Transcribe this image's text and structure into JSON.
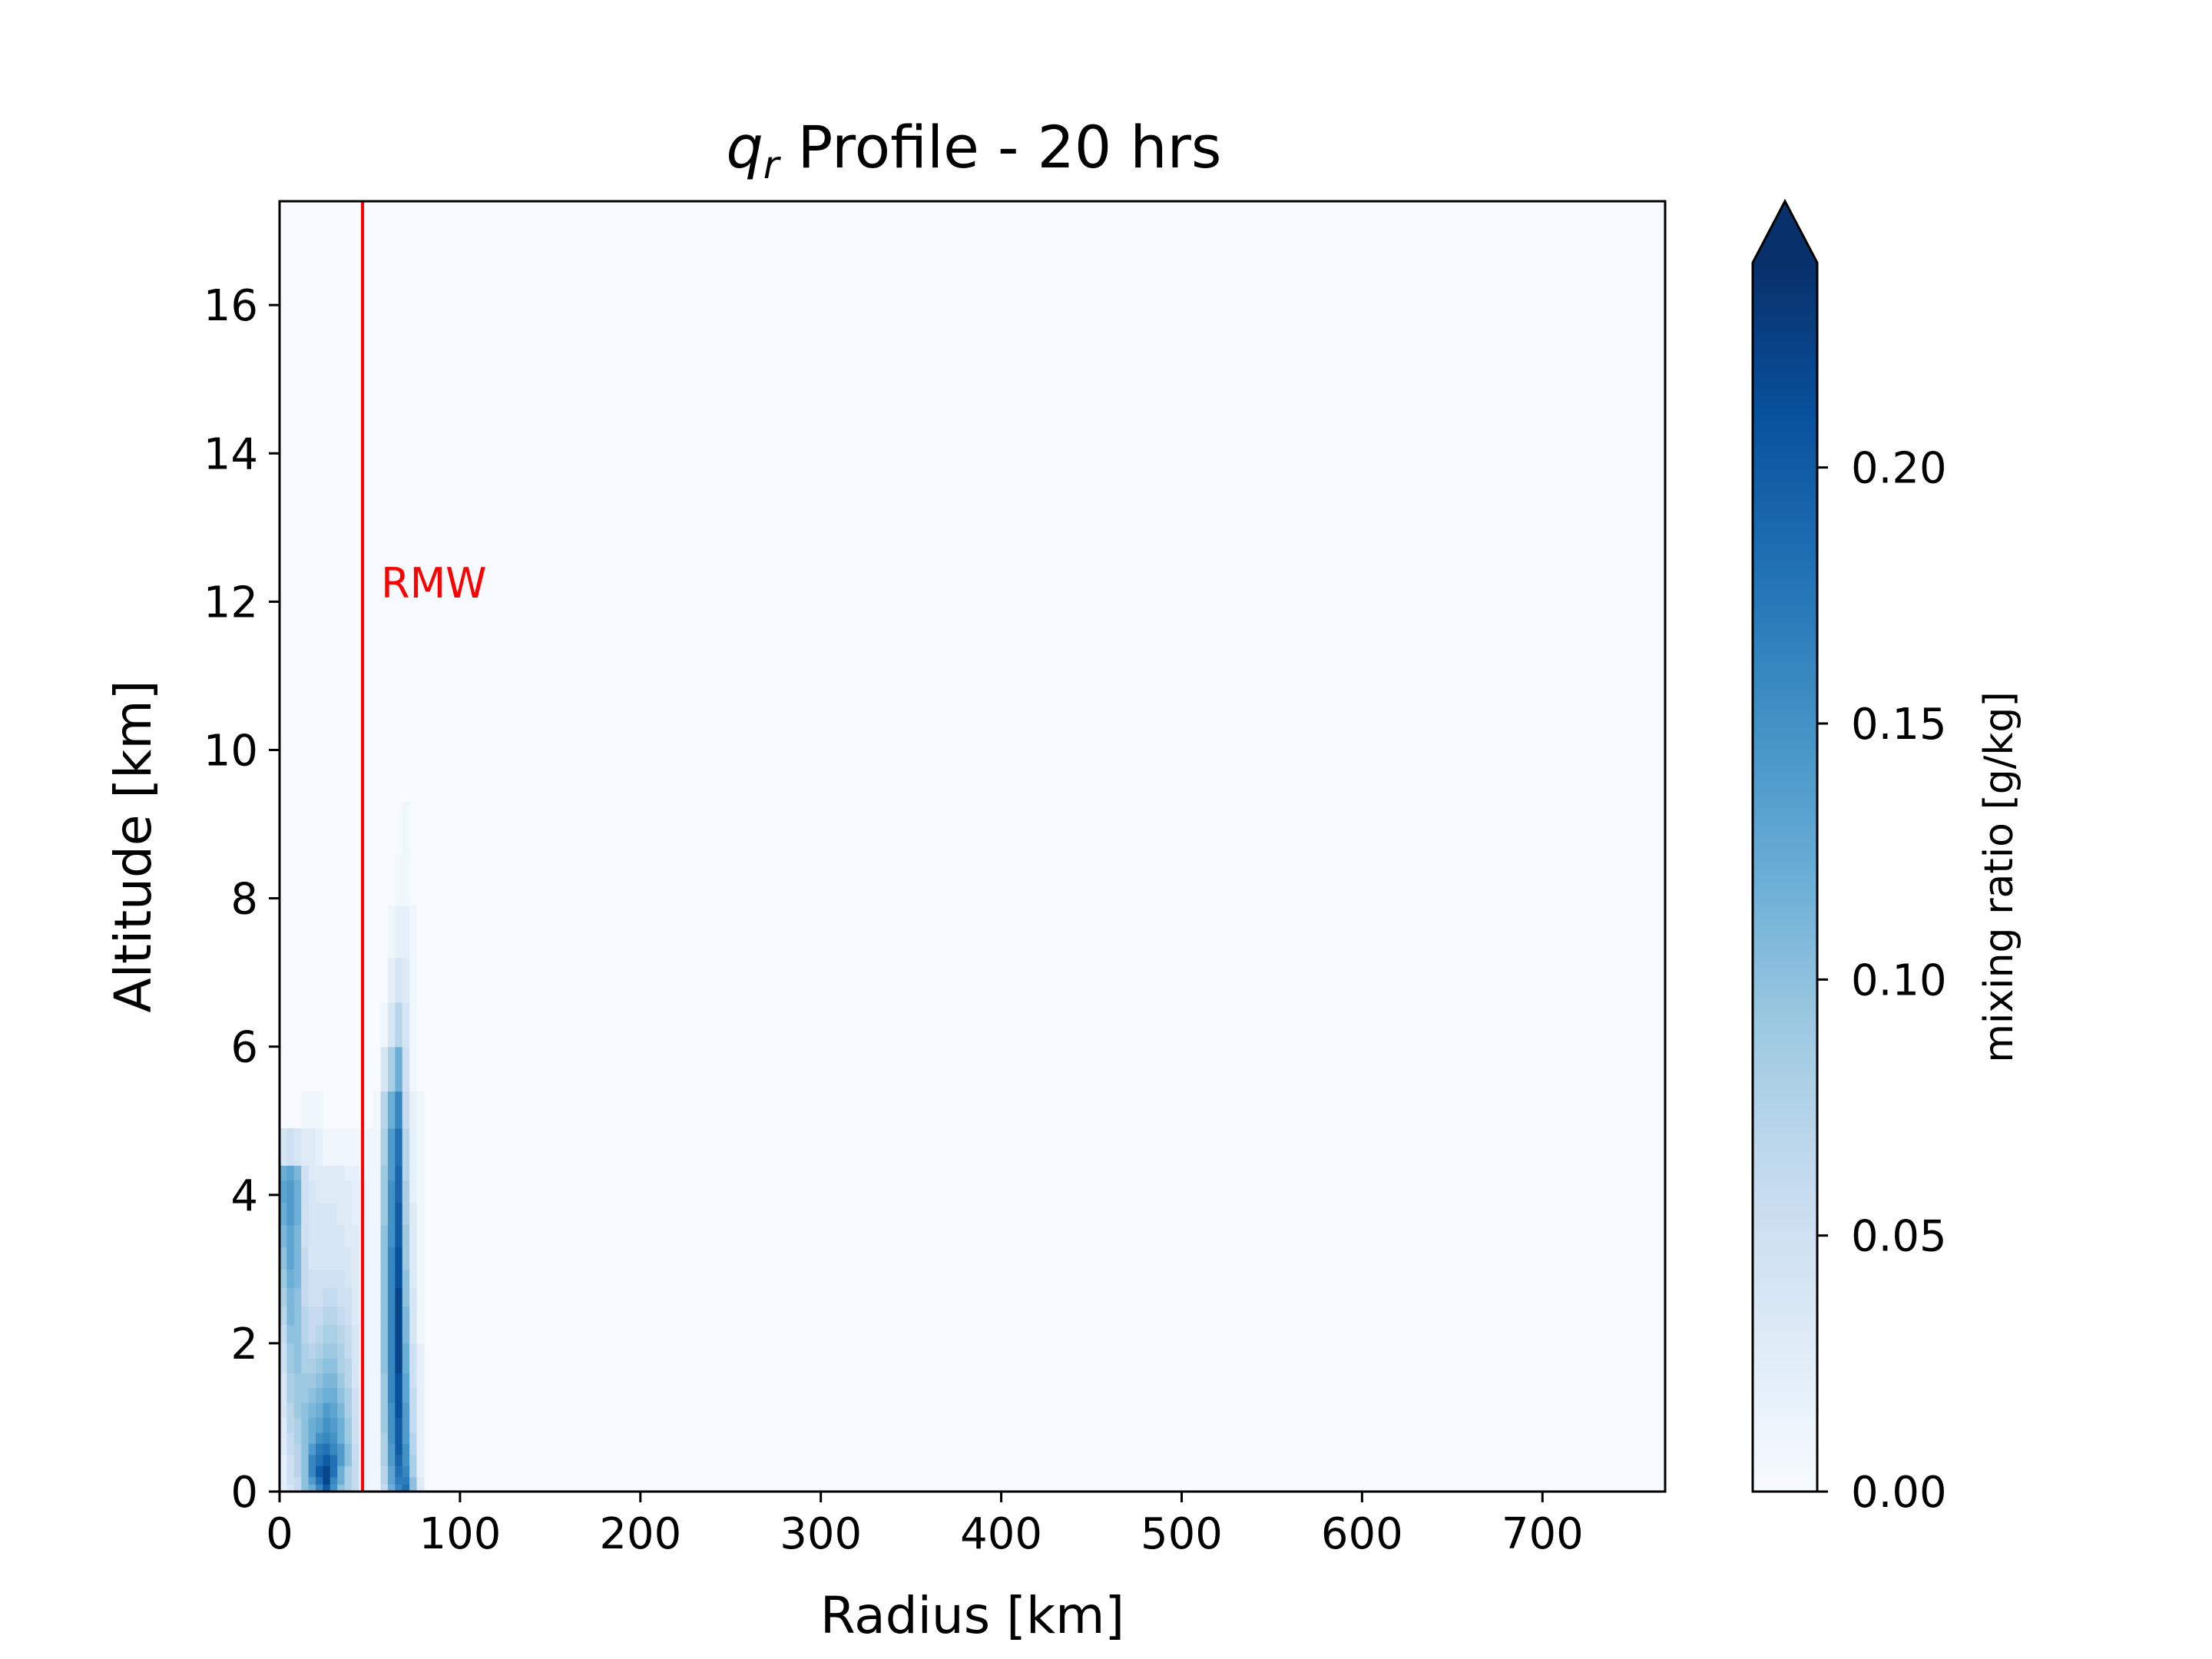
{
  "chart_data": {
    "type": "heatmap",
    "title": {
      "symbol": "q",
      "subscript": "r",
      "text": " Profile - 20 hrs"
    },
    "xlabel": "Radius [km]",
    "ylabel": "Altitude [km]",
    "xlim": [
      0,
      768
    ],
    "ylim": [
      0,
      17.4
    ],
    "x_ticks": [
      0,
      100,
      200,
      300,
      400,
      500,
      600,
      700
    ],
    "y_ticks": [
      0,
      2,
      4,
      6,
      8,
      10,
      12,
      14,
      16
    ],
    "colormap": "Blues",
    "colorbar": {
      "label": "mixing ratio [g/kg]",
      "range": [
        0,
        0.24
      ],
      "ticks": [
        "0.00",
        "0.05",
        "0.10",
        "0.15",
        "0.20"
      ],
      "extend": "max"
    },
    "rmw": {
      "label": "RMW",
      "radius_km": 46,
      "color": "#ff0000"
    },
    "grid": false,
    "field": {
      "r_edges": [
        0,
        4,
        8,
        12,
        16,
        20,
        24,
        28,
        32,
        36,
        40,
        44,
        48,
        52,
        56,
        60,
        64,
        68,
        72,
        76,
        80
      ],
      "z_edges": [
        0,
        0.1,
        0.2,
        0.35,
        0.5,
        0.65,
        0.8,
        1.0,
        1.2,
        1.4,
        1.6,
        1.8,
        2.0,
        2.25,
        2.5,
        2.75,
        3.0,
        3.3,
        3.6,
        3.9,
        4.2,
        4.4,
        4.9,
        5.4,
        6.0,
        6.6,
        7.2,
        7.9,
        8.6,
        9.3
      ],
      "values": [
        [
          0.02,
          0.04,
          0.06,
          0.1,
          0.12,
          0.16,
          0.2,
          0.15,
          0.1,
          0.08,
          0.06,
          0.02,
          0.01,
          0.01,
          0.06,
          0.12,
          0.16,
          0.18,
          0.1,
          0.03
        ],
        [
          0.02,
          0.05,
          0.06,
          0.1,
          0.14,
          0.18,
          0.22,
          0.16,
          0.12,
          0.08,
          0.06,
          0.02,
          0.01,
          0.01,
          0.07,
          0.13,
          0.17,
          0.17,
          0.1,
          0.03
        ],
        [
          0.02,
          0.05,
          0.07,
          0.1,
          0.16,
          0.2,
          0.22,
          0.18,
          0.12,
          0.08,
          0.06,
          0.02,
          0.01,
          0.01,
          0.07,
          0.13,
          0.18,
          0.16,
          0.08,
          0.02
        ],
        [
          0.02,
          0.05,
          0.07,
          0.1,
          0.16,
          0.18,
          0.2,
          0.18,
          0.14,
          0.1,
          0.06,
          0.02,
          0.01,
          0.01,
          0.08,
          0.14,
          0.19,
          0.15,
          0.08,
          0.02
        ],
        [
          0.03,
          0.06,
          0.07,
          0.1,
          0.14,
          0.17,
          0.18,
          0.16,
          0.14,
          0.1,
          0.06,
          0.02,
          0.01,
          0.01,
          0.08,
          0.14,
          0.2,
          0.15,
          0.07,
          0.02
        ],
        [
          0.03,
          0.06,
          0.08,
          0.1,
          0.12,
          0.15,
          0.16,
          0.15,
          0.12,
          0.09,
          0.05,
          0.02,
          0.01,
          0.01,
          0.08,
          0.15,
          0.2,
          0.14,
          0.07,
          0.02
        ],
        [
          0.03,
          0.07,
          0.08,
          0.1,
          0.12,
          0.13,
          0.15,
          0.14,
          0.12,
          0.09,
          0.05,
          0.02,
          0.01,
          0.01,
          0.09,
          0.15,
          0.2,
          0.14,
          0.06,
          0.02
        ],
        [
          0.04,
          0.07,
          0.09,
          0.1,
          0.11,
          0.12,
          0.14,
          0.13,
          0.11,
          0.08,
          0.05,
          0.02,
          0.01,
          0.01,
          0.09,
          0.15,
          0.21,
          0.14,
          0.06,
          0.02
        ],
        [
          0.04,
          0.08,
          0.09,
          0.09,
          0.1,
          0.11,
          0.12,
          0.12,
          0.1,
          0.08,
          0.05,
          0.02,
          0.01,
          0.01,
          0.09,
          0.16,
          0.21,
          0.13,
          0.06,
          0.02
        ],
        [
          0.04,
          0.08,
          0.09,
          0.09,
          0.09,
          0.1,
          0.11,
          0.11,
          0.09,
          0.07,
          0.04,
          0.02,
          0.01,
          0.01,
          0.09,
          0.16,
          0.21,
          0.13,
          0.05,
          0.02
        ],
        [
          0.05,
          0.09,
          0.1,
          0.08,
          0.08,
          0.09,
          0.1,
          0.1,
          0.08,
          0.07,
          0.04,
          0.02,
          0.01,
          0.01,
          0.1,
          0.16,
          0.22,
          0.12,
          0.05,
          0.02
        ],
        [
          0.05,
          0.09,
          0.1,
          0.08,
          0.07,
          0.08,
          0.09,
          0.09,
          0.08,
          0.06,
          0.04,
          0.02,
          0.01,
          0.01,
          0.1,
          0.16,
          0.22,
          0.12,
          0.05,
          0.02
        ],
        [
          0.06,
          0.1,
          0.1,
          0.07,
          0.06,
          0.07,
          0.08,
          0.08,
          0.07,
          0.06,
          0.04,
          0.02,
          0.01,
          0.01,
          0.1,
          0.16,
          0.22,
          0.11,
          0.04,
          0.01
        ],
        [
          0.07,
          0.11,
          0.1,
          0.07,
          0.06,
          0.06,
          0.07,
          0.07,
          0.06,
          0.05,
          0.03,
          0.02,
          0.01,
          0.01,
          0.1,
          0.16,
          0.22,
          0.11,
          0.04,
          0.01
        ],
        [
          0.08,
          0.11,
          0.1,
          0.06,
          0.05,
          0.05,
          0.06,
          0.06,
          0.05,
          0.05,
          0.03,
          0.02,
          0.01,
          0.01,
          0.1,
          0.16,
          0.22,
          0.1,
          0.04,
          0.01
        ],
        [
          0.09,
          0.12,
          0.11,
          0.06,
          0.05,
          0.05,
          0.05,
          0.05,
          0.05,
          0.04,
          0.03,
          0.02,
          0.01,
          0.01,
          0.1,
          0.16,
          0.21,
          0.1,
          0.03,
          0.01
        ],
        [
          0.1,
          0.13,
          0.11,
          0.06,
          0.04,
          0.04,
          0.04,
          0.04,
          0.04,
          0.04,
          0.03,
          0.02,
          0.01,
          0.01,
          0.1,
          0.16,
          0.21,
          0.09,
          0.03,
          0.01
        ],
        [
          0.11,
          0.13,
          0.11,
          0.05,
          0.04,
          0.04,
          0.04,
          0.04,
          0.04,
          0.03,
          0.03,
          0.02,
          0.01,
          0.01,
          0.1,
          0.15,
          0.2,
          0.09,
          0.03,
          0.01
        ],
        [
          0.12,
          0.14,
          0.12,
          0.05,
          0.04,
          0.04,
          0.04,
          0.04,
          0.03,
          0.03,
          0.02,
          0.02,
          0.01,
          0.01,
          0.09,
          0.15,
          0.2,
          0.08,
          0.03,
          0.01
        ],
        [
          0.13,
          0.14,
          0.12,
          0.05,
          0.04,
          0.03,
          0.03,
          0.03,
          0.03,
          0.03,
          0.02,
          0.02,
          0.01,
          0.01,
          0.09,
          0.15,
          0.19,
          0.08,
          0.02,
          0.01
        ],
        [
          0.12,
          0.13,
          0.11,
          0.05,
          0.03,
          0.03,
          0.03,
          0.03,
          0.03,
          0.02,
          0.02,
          0.01,
          0.01,
          0.01,
          0.09,
          0.14,
          0.19,
          0.07,
          0.02,
          0.01
        ],
        [
          0.04,
          0.05,
          0.04,
          0.03,
          0.03,
          0.02,
          0.01,
          0.01,
          0.01,
          0.01,
          0.01,
          0.01,
          0.01,
          0.01,
          0.08,
          0.14,
          0.18,
          0.07,
          0.02,
          0.01
        ],
        [
          0.0,
          0.0,
          0.0,
          0.01,
          0.01,
          0.01,
          0.0,
          0.0,
          0.0,
          0.0,
          0.0,
          0.0,
          0.0,
          0.01,
          0.07,
          0.12,
          0.16,
          0.06,
          0.02,
          0.01
        ],
        [
          0.0,
          0.0,
          0.0,
          0.0,
          0.0,
          0.0,
          0.0,
          0.0,
          0.0,
          0.0,
          0.0,
          0.0,
          0.0,
          0.0,
          0.04,
          0.08,
          0.12,
          0.05,
          0.01,
          0.0
        ],
        [
          0.0,
          0.0,
          0.0,
          0.0,
          0.0,
          0.0,
          0.0,
          0.0,
          0.0,
          0.0,
          0.0,
          0.0,
          0.0,
          0.0,
          0.01,
          0.04,
          0.07,
          0.04,
          0.01,
          0.0
        ],
        [
          0.0,
          0.0,
          0.0,
          0.0,
          0.0,
          0.0,
          0.0,
          0.0,
          0.0,
          0.0,
          0.0,
          0.0,
          0.0,
          0.0,
          0.0,
          0.02,
          0.04,
          0.03,
          0.01,
          0.0
        ],
        [
          0.0,
          0.0,
          0.0,
          0.0,
          0.0,
          0.0,
          0.0,
          0.0,
          0.0,
          0.0,
          0.0,
          0.0,
          0.0,
          0.0,
          0.0,
          0.01,
          0.02,
          0.02,
          0.01,
          0.0
        ],
        [
          0.0,
          0.0,
          0.0,
          0.0,
          0.0,
          0.0,
          0.0,
          0.0,
          0.0,
          0.0,
          0.0,
          0.0,
          0.0,
          0.0,
          0.0,
          0.0,
          0.01,
          0.01,
          0.0,
          0.0
        ],
        [
          0.0,
          0.0,
          0.0,
          0.0,
          0.0,
          0.0,
          0.0,
          0.0,
          0.0,
          0.0,
          0.0,
          0.0,
          0.0,
          0.0,
          0.0,
          0.0,
          0.0,
          0.01,
          0.0,
          0.0
        ]
      ]
    }
  }
}
